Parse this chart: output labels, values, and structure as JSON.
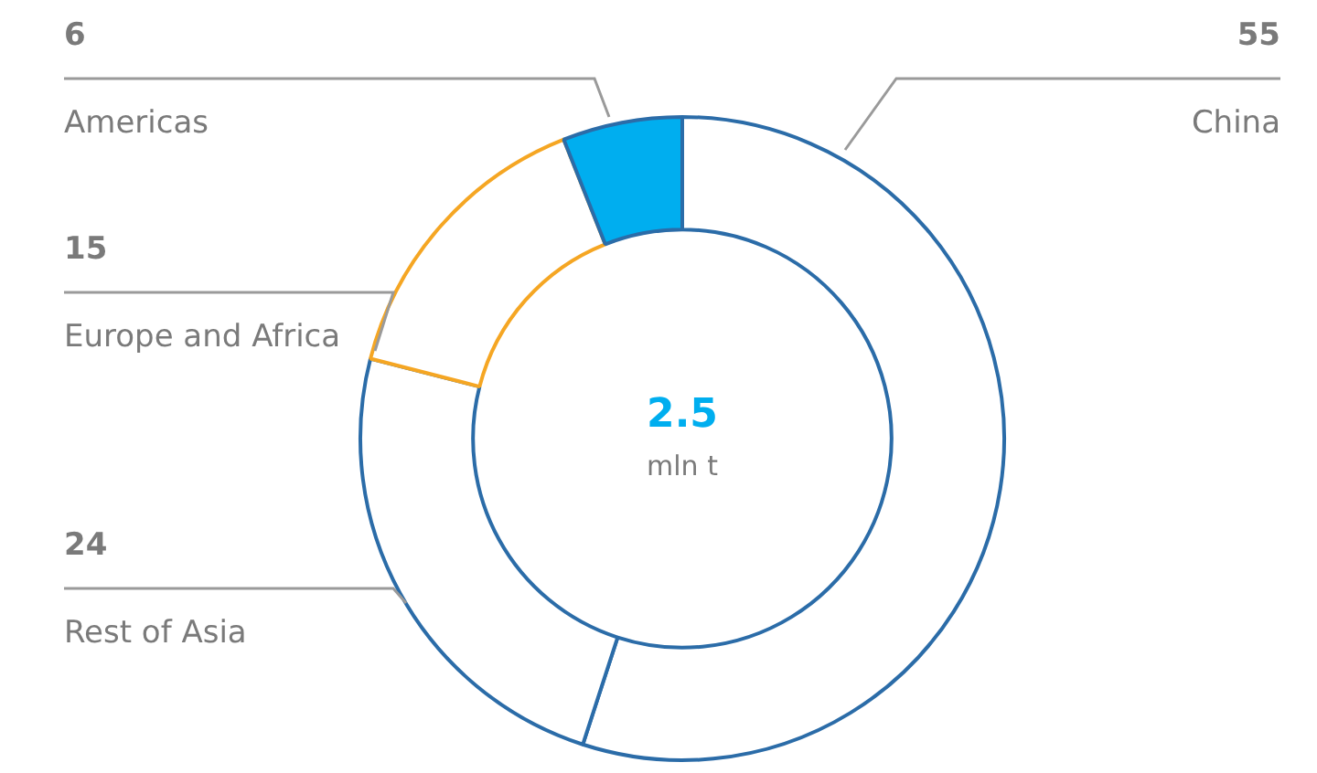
{
  "chart_data": {
    "type": "donut",
    "categories": [
      "China",
      "Rest of Asia",
      "Europe and Africa",
      "Americas"
    ],
    "values": [
      55,
      24,
      15,
      6
    ],
    "colors": [
      "#ffffff",
      "#ffffff",
      "#ffffff",
      "#00aeef"
    ],
    "data_labels": true,
    "legend": false,
    "annotations": [
      "2.5",
      "mln t"
    ]
  }
}
